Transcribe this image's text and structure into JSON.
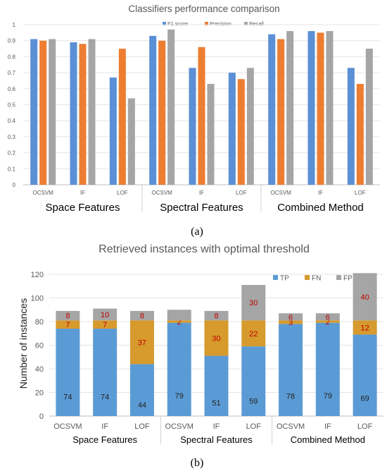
{
  "chart_data": [
    {
      "type": "bar",
      "title": "Classifiers performance comparison",
      "panel_label": "(a)",
      "categories": [
        "OCSVM",
        "IF",
        "LOF",
        "OCSVM",
        "IF",
        "LOF",
        "OCSVM",
        "IF",
        "LOF"
      ],
      "groups": [
        "Space Features",
        "Spectral Features",
        "Combined Method"
      ],
      "series": [
        {
          "name": "F1 score",
          "color": "#5b8fd6",
          "values": [
            0.91,
            0.89,
            0.67,
            0.93,
            0.73,
            0.7,
            0.94,
            0.96,
            0.73
          ]
        },
        {
          "name": "Precision",
          "color": "#ed7d31",
          "values": [
            0.9,
            0.88,
            0.85,
            0.9,
            0.86,
            0.66,
            0.91,
            0.95,
            0.63
          ]
        },
        {
          "name": "Recall",
          "color": "#a5a5a5",
          "values": [
            0.91,
            0.91,
            0.54,
            0.97,
            0.63,
            0.73,
            0.96,
            0.96,
            0.85
          ]
        }
      ],
      "ylim": [
        0,
        1
      ],
      "yticks": [
        "0",
        "0.1",
        "0.2",
        "0.3",
        "0.4",
        "0.5",
        "0.6",
        "0.7",
        "0.8",
        "0.9",
        "1"
      ],
      "legend_position": "top",
      "grid": true
    },
    {
      "type": "stacked-bar",
      "title": "Retrieved instances with optimal threshold",
      "panel_label": "(b)",
      "ylabel": "Number of instances",
      "categories": [
        "OCSVM",
        "IF",
        "LOF",
        "OCSVM",
        "IF",
        "LOF",
        "OCSVM",
        "IF",
        "LOF"
      ],
      "groups": [
        "Space Features",
        "Spectral Features",
        "Combined Method"
      ],
      "series": [
        {
          "name": "TP",
          "color": "#5b9bd5",
          "values": [
            74,
            74,
            44,
            79,
            51,
            59,
            78,
            79,
            69
          ]
        },
        {
          "name": "FN",
          "color": "#d69a2d",
          "values": [
            7,
            7,
            37,
            2,
            30,
            22,
            3,
            2,
            12
          ]
        },
        {
          "name": "FP",
          "color": "#a5a5a5",
          "values": [
            8,
            10,
            8,
            9,
            8,
            30,
            6,
            6,
            40
          ]
        }
      ],
      "segment_labels": [
        [
          "74",
          "74",
          "44",
          "79",
          "51",
          "59",
          "78",
          "79",
          "69"
        ],
        [
          "7",
          "7",
          "37",
          "2",
          "30",
          "22",
          "3",
          "2",
          "12"
        ],
        [
          "8",
          "10",
          "8",
          "",
          "8",
          "30",
          "6",
          "6",
          "40"
        ]
      ],
      "ylim": [
        0,
        120
      ],
      "yticks": [
        "0",
        "20",
        "40",
        "60",
        "80",
        "100",
        "120"
      ],
      "legend_position": "top-right",
      "grid": true
    }
  ]
}
